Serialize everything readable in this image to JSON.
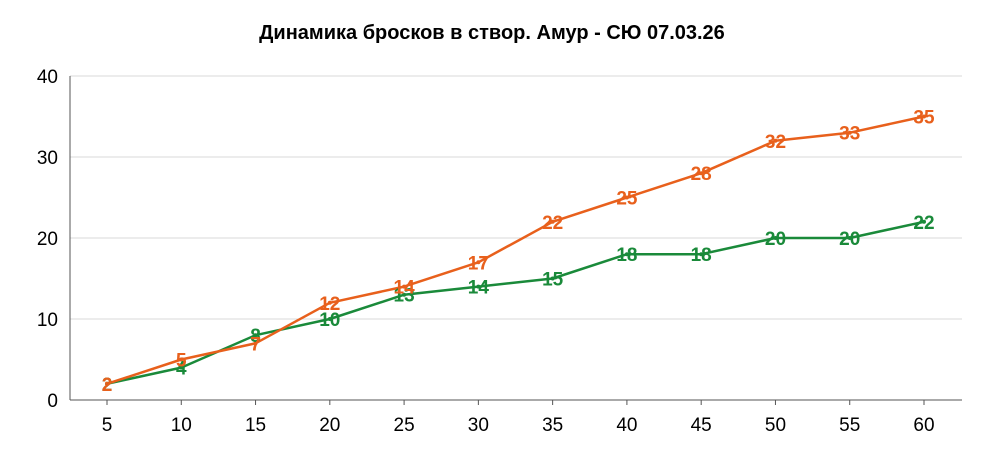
{
  "chart_data": {
    "type": "line",
    "title": "Динамика бросков в створ. Амур - СЮ 07.03.26",
    "x": [
      5,
      10,
      15,
      20,
      25,
      30,
      35,
      40,
      45,
      50,
      55,
      60
    ],
    "x_tick_labels": [
      "5",
      "10",
      "15",
      "20",
      "25",
      "30",
      "35",
      "40",
      "45",
      "50",
      "55",
      "60"
    ],
    "y_tick_labels": [
      "0",
      "10",
      "20",
      "30",
      "40"
    ],
    "y_ticks": [
      0,
      10,
      20,
      30,
      40
    ],
    "ylim": [
      0,
      40
    ],
    "grid": true,
    "series": [
      {
        "color": "#1a8a3a",
        "values": [
          2,
          4,
          8,
          10,
          13,
          14,
          15,
          18,
          18,
          20,
          20,
          22
        ]
      },
      {
        "color": "#e8601c",
        "values": [
          2,
          5,
          7,
          12,
          14,
          17,
          22,
          25,
          28,
          32,
          33,
          35
        ]
      }
    ],
    "colors": {
      "grid": "#d9d9d9",
      "axis": "#555555",
      "text": "#000000"
    }
  }
}
